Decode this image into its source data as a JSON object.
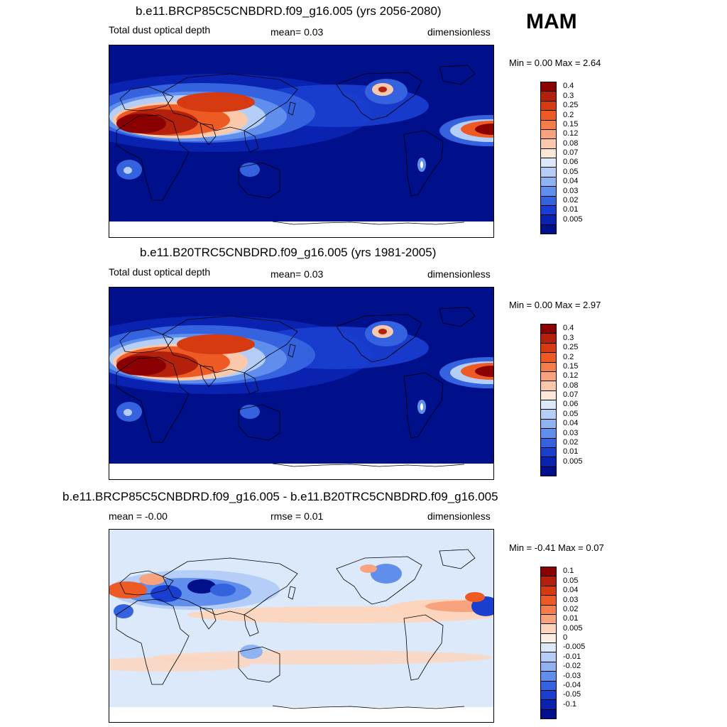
{
  "season": "MAM",
  "panels": [
    {
      "title": "b.e11.BRCP85C5CNBDRD.f09_g16.005 (yrs 2056-2080)",
      "left": "Total dust optical depth",
      "center": "mean=   0.03",
      "right": "dimensionless",
      "minmax": "Min =    0.00 Max =    2.64",
      "map_kind": "abs"
    },
    {
      "title": "b.e11.B20TRC5CNBDRD.f09_g16.005 (yrs 1981-2005)",
      "left": "Total dust optical depth",
      "center": "mean=   0.03",
      "right": "dimensionless",
      "minmax": "Min =    0.00 Max =    2.97",
      "map_kind": "abs"
    },
    {
      "title": "b.e11.BRCP85C5CNBDRD.f09_g16.005 - b.e11.B20TRC5CNBDRD.f09_g16.005",
      "left": "mean =  -0.00",
      "center": "rmse =   0.01",
      "right": "dimensionless",
      "minmax": "Min =  -0.41 Max =    0.07",
      "map_kind": "diff"
    }
  ],
  "colorbar_abs": {
    "labels": [
      "0.4",
      "0.3",
      "0.25",
      "0.2",
      "0.15",
      "0.12",
      "0.08",
      "0.07",
      "0.06",
      "0.05",
      "0.04",
      "0.03",
      "0.02",
      "0.01",
      "0.005"
    ],
    "colors": [
      "#8b0000",
      "#b3200b",
      "#d63a10",
      "#ee5a24",
      "#f57d4a",
      "#f9a27e",
      "#fcc8ab",
      "#fde7d6",
      "#dbe9fb",
      "#b5cef7",
      "#8fb2f1",
      "#5f8eec",
      "#3563e0",
      "#1a3fd0",
      "#0a22b0",
      "#00108a"
    ]
  },
  "colorbar_diff": {
    "labels": [
      "0.1",
      "0.05",
      "0.04",
      "0.03",
      "0.02",
      "0.01",
      "0.005",
      "0",
      "-0.005",
      "-0.01",
      "-0.02",
      "-0.03",
      "-0.04",
      "-0.05",
      "-0.1"
    ],
    "colors": [
      "#8b0000",
      "#b3200b",
      "#d63a10",
      "#ee5a24",
      "#f57d4a",
      "#f9a27e",
      "#fdd5bd",
      "#fdeee2",
      "#dbe9fb",
      "#b5cef7",
      "#8fb2f1",
      "#5f8eec",
      "#3563e0",
      "#1a3fd0",
      "#0a22b0",
      "#00108a"
    ]
  }
}
